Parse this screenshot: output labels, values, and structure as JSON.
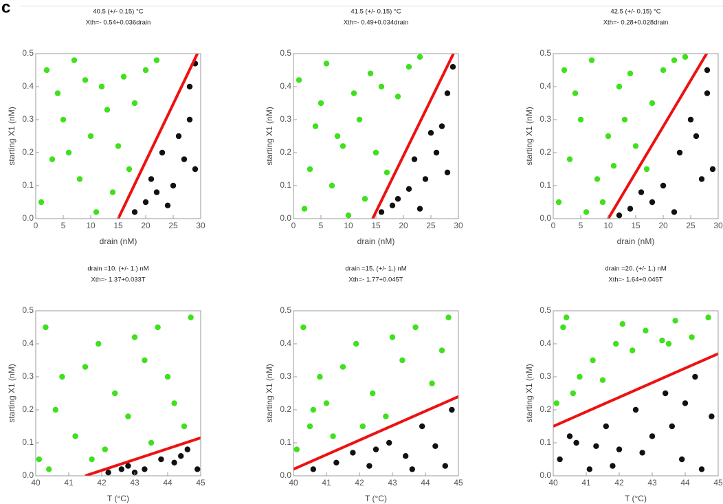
{
  "panel_label": "c",
  "chart_data": [
    {
      "type": "scatter",
      "title": "40.5 (+/- 0.15) °C",
      "subtitle": "Xth=- 0.54+0.036drain",
      "x_label": "drain (nM)",
      "y_label": "starting X1 (nM)",
      "xlim": [
        0,
        30
      ],
      "ylim": [
        0,
        0.5
      ],
      "xticks": [
        0,
        5,
        10,
        15,
        20,
        25,
        30
      ],
      "yticks": [
        {
          "value": 0,
          "label": "0.0"
        },
        0.1,
        0.2,
        0.3,
        0.4,
        0.5
      ],
      "series": [
        {
          "color": "#3fe01c",
          "x": [
            2,
            5,
            8,
            1,
            12,
            10,
            3,
            14,
            18,
            20,
            7,
            15,
            22,
            11,
            4,
            17,
            6,
            13,
            9,
            16
          ],
          "values": [
            0.45,
            0.3,
            0.12,
            0.05,
            0.4,
            0.25,
            0.18,
            0.08,
            0.35,
            0.45,
            0.48,
            0.22,
            0.48,
            0.02,
            0.38,
            0.15,
            0.2,
            0.33,
            0.42,
            0.43
          ]
        },
        {
          "color": "#111111",
          "x": [
            20,
            25,
            28,
            23,
            29,
            18,
            26,
            29,
            22,
            28,
            24,
            27,
            21
          ],
          "values": [
            0.05,
            0.1,
            0.3,
            0.2,
            0.47,
            0.02,
            0.25,
            0.15,
            0.08,
            0.4,
            0.04,
            0.18,
            0.12
          ]
        },
        {
          "type": "line",
          "color": "#ee1111",
          "x": [
            15,
            29.4
          ],
          "values": [
            0,
            0.5
          ]
        }
      ]
    },
    {
      "type": "scatter",
      "title": "41.5 (+/- 0.15) °C",
      "subtitle": "Xth=- 0.49+0.034drain",
      "x_label": "drain (nM)",
      "y_label": "starting X1 (nM)",
      "xlim": [
        0,
        30
      ],
      "ylim": [
        0,
        0.5
      ],
      "xticks": [
        0,
        5,
        10,
        15,
        20,
        25,
        30
      ],
      "yticks": [
        {
          "value": 0,
          "label": "0.0"
        },
        0.1,
        0.2,
        0.3,
        0.4,
        0.5
      ],
      "series": [
        {
          "color": "#3fe01c",
          "x": [
            1,
            4,
            7,
            2,
            11,
            9,
            3,
            13,
            19,
            21,
            6,
            15,
            23,
            10,
            5,
            17,
            8,
            12,
            14,
            16
          ],
          "values": [
            0.42,
            0.28,
            0.1,
            0.03,
            0.38,
            0.22,
            0.15,
            0.06,
            0.37,
            0.46,
            0.47,
            0.2,
            0.49,
            0.01,
            0.35,
            0.14,
            0.25,
            0.3,
            0.44,
            0.4
          ]
        },
        {
          "color": "#111111",
          "x": [
            19,
            24,
            27,
            22,
            29,
            16,
            25,
            28,
            21,
            28,
            23,
            26,
            18
          ],
          "values": [
            0.06,
            0.12,
            0.28,
            0.18,
            0.46,
            0.02,
            0.26,
            0.14,
            0.09,
            0.38,
            0.03,
            0.2,
            0.04
          ]
        },
        {
          "type": "line",
          "color": "#ee1111",
          "x": [
            14.4,
            29.1
          ],
          "values": [
            0,
            0.5
          ]
        }
      ]
    },
    {
      "type": "scatter",
      "title": "42.5 (+/- 0.15) °C",
      "subtitle": "Xth=- 0.28+0.028drain",
      "x_label": "drain (nM)",
      "y_label": "starting X1 (nM)",
      "xlim": [
        0,
        30
      ],
      "ylim": [
        0,
        0.5
      ],
      "xticks": [
        0,
        5,
        10,
        15,
        20,
        25,
        30
      ],
      "yticks": [
        {
          "value": 0,
          "label": "0.0"
        },
        0.1,
        0.2,
        0.3,
        0.4,
        0.5
      ],
      "series": [
        {
          "color": "#3fe01c",
          "x": [
            2,
            5,
            8,
            1,
            12,
            10,
            3,
            9,
            18,
            20,
            7,
            15,
            22,
            6,
            4,
            17,
            13,
            11,
            14,
            24
          ],
          "values": [
            0.45,
            0.3,
            0.12,
            0.05,
            0.4,
            0.25,
            0.18,
            0.05,
            0.35,
            0.45,
            0.48,
            0.22,
            0.48,
            0.02,
            0.38,
            0.15,
            0.3,
            0.16,
            0.44,
            0.49
          ]
        },
        {
          "color": "#111111",
          "x": [
            14,
            20,
            25,
            23,
            28,
            12,
            26,
            29,
            18,
            28,
            22,
            27,
            16
          ],
          "values": [
            0.03,
            0.1,
            0.3,
            0.2,
            0.45,
            0.01,
            0.25,
            0.15,
            0.05,
            0.38,
            0.02,
            0.12,
            0.08
          ]
        },
        {
          "type": "line",
          "color": "#ee1111",
          "x": [
            10,
            27.9
          ],
          "values": [
            0,
            0.5
          ]
        }
      ]
    },
    {
      "type": "scatter",
      "title": "drain =10. (+/- 1.) nM",
      "subtitle": "Xth=- 1.37+0.033T",
      "x_label": "T (°C)",
      "y_label": "starting X1 (nM)",
      "xlim": [
        40,
        45
      ],
      "ylim": [
        0,
        0.5
      ],
      "xticks": [
        40,
        41,
        42,
        43,
        44,
        45
      ],
      "yticks": [
        {
          "value": 0,
          "label": "0.0"
        },
        0.1,
        0.2,
        0.3,
        0.4,
        0.5
      ],
      "series": [
        {
          "color": "#3fe01c",
          "x": [
            40.3,
            40.8,
            41.2,
            40.1,
            41.9,
            42.4,
            42.8,
            43.3,
            43.7,
            44.2,
            44.7,
            40.6,
            41.5,
            42.1,
            43.0,
            44.5,
            40.4,
            41.7,
            43.5,
            44.0
          ],
          "values": [
            0.45,
            0.3,
            0.12,
            0.05,
            0.4,
            0.25,
            0.18,
            0.35,
            0.45,
            0.22,
            0.48,
            0.2,
            0.33,
            0.08,
            0.42,
            0.15,
            0.02,
            0.05,
            0.1,
            0.3
          ]
        },
        {
          "color": "#111111",
          "x": [
            42.2,
            42.8,
            43.3,
            43.8,
            44.2,
            44.6,
            44.9,
            43.0,
            44.4,
            42.6
          ],
          "values": [
            0.01,
            0.03,
            0.02,
            0.05,
            0.04,
            0.08,
            0.02,
            0.01,
            0.06,
            0.02
          ]
        },
        {
          "type": "line",
          "color": "#ee1111",
          "x": [
            41.5,
            45
          ],
          "values": [
            0,
            0.115
          ]
        }
      ]
    },
    {
      "type": "scatter",
      "title": "drain =15. (+/- 1.) nM",
      "subtitle": "Xth=- 1.77+0.045T",
      "x_label": "T (°C)",
      "y_label": "starting X1 (nM)",
      "xlim": [
        40,
        45
      ],
      "ylim": [
        0,
        0.5
      ],
      "xticks": [
        40,
        41,
        42,
        43,
        44,
        45
      ],
      "yticks": [
        {
          "value": 0,
          "label": "0.0"
        },
        0.1,
        0.2,
        0.3,
        0.4,
        0.5
      ],
      "series": [
        {
          "color": "#3fe01c",
          "x": [
            40.3,
            40.8,
            41.2,
            40.1,
            41.9,
            42.4,
            42.8,
            43.3,
            43.7,
            44.2,
            44.7,
            40.6,
            41.5,
            42.1,
            43.0,
            44.5,
            40.5,
            41.0
          ],
          "values": [
            0.45,
            0.3,
            0.12,
            0.08,
            0.4,
            0.25,
            0.18,
            0.35,
            0.45,
            0.28,
            0.48,
            0.2,
            0.33,
            0.15,
            0.42,
            0.38,
            0.15,
            0.22
          ]
        },
        {
          "color": "#111111",
          "x": [
            40.6,
            41.3,
            41.8,
            42.3,
            42.9,
            43.4,
            43.9,
            44.3,
            44.8,
            44.6,
            43.6,
            42.5
          ],
          "values": [
            0.02,
            0.04,
            0.07,
            0.03,
            0.1,
            0.06,
            0.15,
            0.09,
            0.2,
            0.03,
            0.02,
            0.08
          ]
        },
        {
          "type": "line",
          "color": "#ee1111",
          "x": [
            40,
            45
          ],
          "values": [
            0.02,
            0.24
          ]
        }
      ]
    },
    {
      "type": "scatter",
      "title": "drain =20. (+/- 1.) nM",
      "subtitle": "Xth=- 1.64+0.045T",
      "x_label": "T (°C)",
      "y_label": "starting X1 (nM)",
      "xlim": [
        40,
        45
      ],
      "ylim": [
        0,
        0.5
      ],
      "xticks": [
        40,
        41,
        42,
        43,
        44,
        45
      ],
      "yticks": [
        {
          "value": 0,
          "label": "0.0"
        },
        0.1,
        0.2,
        0.3,
        0.4,
        0.5
      ],
      "series": [
        {
          "color": "#3fe01c",
          "x": [
            40.3,
            40.8,
            41.2,
            40.1,
            41.9,
            42.4,
            42.8,
            43.3,
            43.7,
            44.2,
            44.7,
            40.6,
            41.5,
            42.1,
            43.5,
            40.4
          ],
          "values": [
            0.45,
            0.3,
            0.35,
            0.22,
            0.4,
            0.38,
            0.44,
            0.41,
            0.47,
            0.42,
            0.48,
            0.25,
            0.29,
            0.46,
            0.4,
            0.48
          ]
        },
        {
          "color": "#111111",
          "x": [
            40.2,
            40.7,
            41.1,
            41.6,
            42.0,
            42.5,
            43.0,
            43.4,
            43.9,
            44.3,
            44.8,
            40.5,
            41.8,
            42.7,
            43.6,
            44.5,
            41.3,
            44.0
          ],
          "values": [
            0.05,
            0.1,
            0.02,
            0.15,
            0.08,
            0.2,
            0.12,
            0.25,
            0.05,
            0.3,
            0.18,
            0.12,
            0.03,
            0.07,
            0.15,
            0.02,
            0.09,
            0.22
          ]
        },
        {
          "type": "line",
          "color": "#ee1111",
          "x": [
            40,
            45
          ],
          "values": [
            0.15,
            0.37
          ]
        }
      ]
    }
  ]
}
